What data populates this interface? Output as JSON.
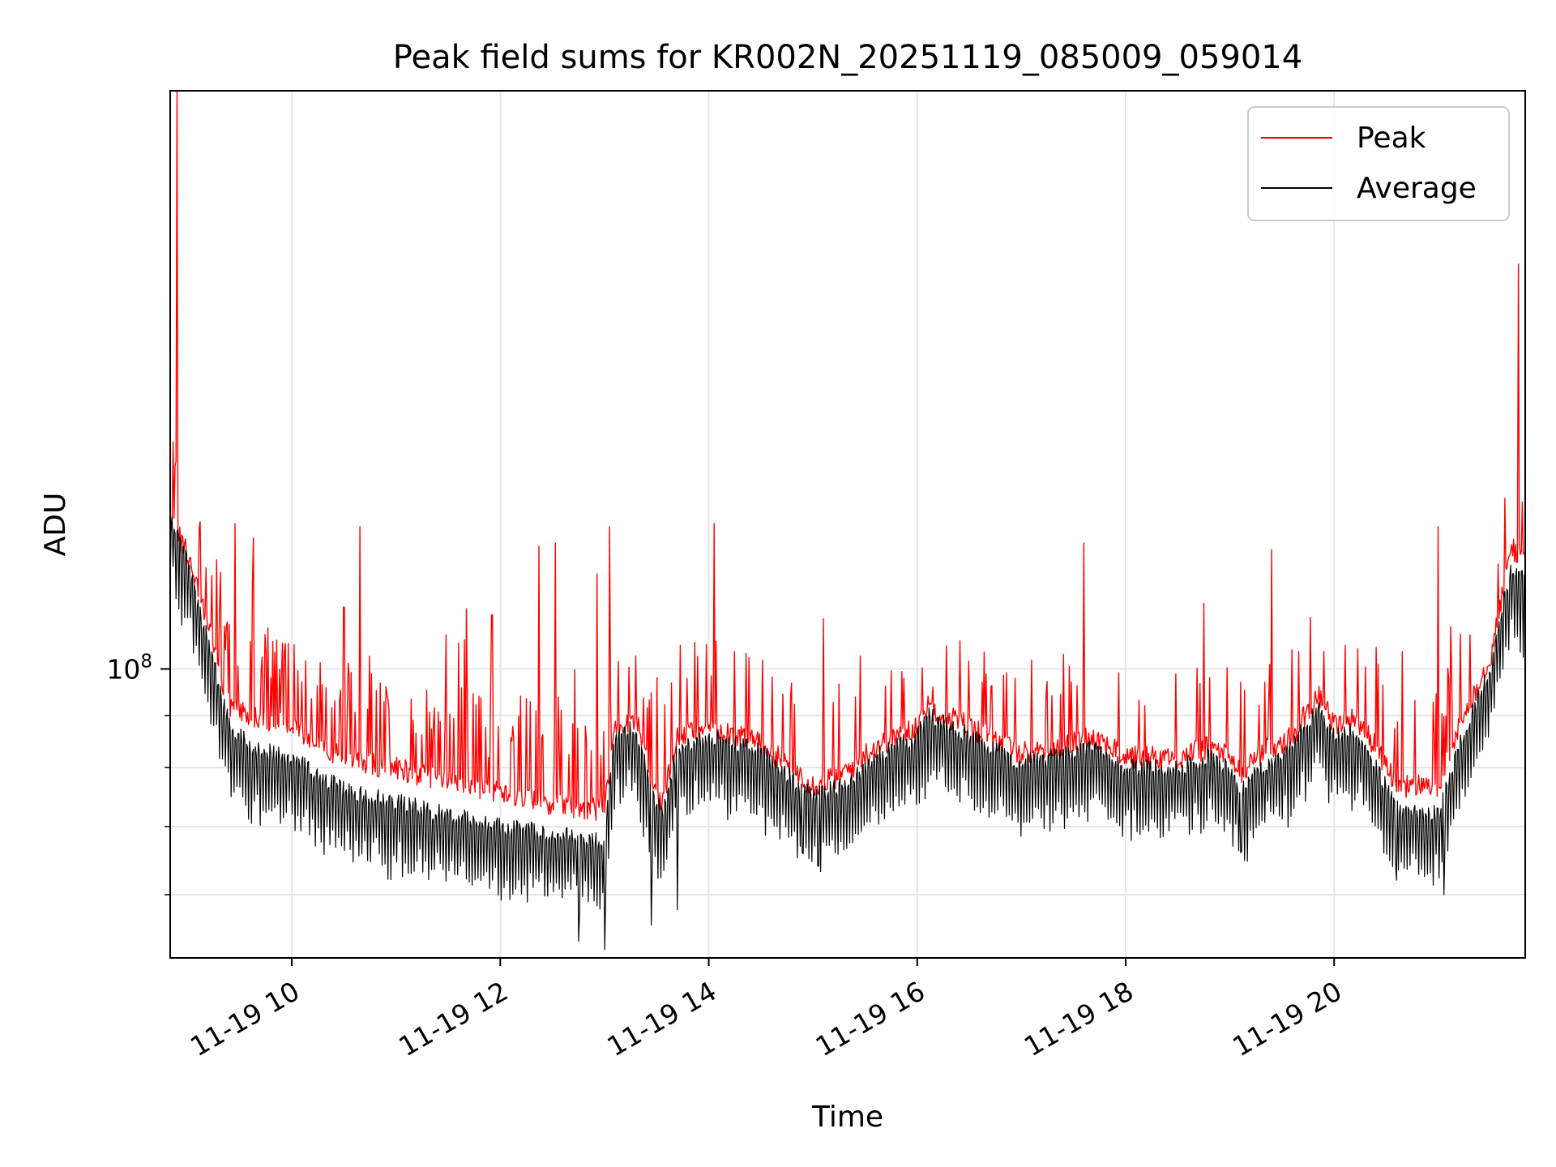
{
  "chart_data": {
    "type": "line",
    "title": "Peak field sums for KR002N_20251119_085009_059014",
    "xlabel": "Time",
    "ylabel": "ADU",
    "yscale": "log",
    "xlim_hours": [
      8.833,
      21.833
    ],
    "ylim": [
      52000000,
      370000000
    ],
    "x_ticks": [
      {
        "value": 10,
        "label": "11-19 10"
      },
      {
        "value": 12,
        "label": "11-19 12"
      },
      {
        "value": 14,
        "label": "11-19 14"
      },
      {
        "value": 16,
        "label": "11-19 16"
      },
      {
        "value": 18,
        "label": "11-19 18"
      },
      {
        "value": 20,
        "label": "11-19 20"
      }
    ],
    "y_major_tick": {
      "value": 100000000,
      "label_base": "10",
      "label_exp": "8"
    },
    "y_minor_ticks": [
      60000000,
      70000000,
      80000000,
      90000000
    ],
    "grid": true,
    "legend_position": "top-right",
    "colors": {
      "peak": "#ff0000",
      "average": "#000000",
      "grid": "#e6e6e6"
    },
    "series": [
      {
        "name": "Peak",
        "color": "#ff0000",
        "baseline": [
          [
            8.85,
            140000000
          ],
          [
            9.0,
            130000000
          ],
          [
            9.2,
            110000000
          ],
          [
            9.4,
            92000000
          ],
          [
            9.6,
            90000000
          ],
          [
            10.0,
            88000000
          ],
          [
            10.5,
            82000000
          ],
          [
            11.0,
            80000000
          ],
          [
            11.5,
            78000000
          ],
          [
            12.0,
            76000000
          ],
          [
            12.5,
            74000000
          ],
          [
            13.0,
            73000000
          ],
          [
            13.1,
            88000000
          ],
          [
            13.3,
            90000000
          ],
          [
            13.45,
            78000000
          ],
          [
            13.55,
            74000000
          ],
          [
            13.7,
            86000000
          ],
          [
            14.0,
            88000000
          ],
          [
            14.5,
            85000000
          ],
          [
            14.8,
            80000000
          ],
          [
            15.0,
            77000000
          ],
          [
            15.3,
            79000000
          ],
          [
            15.6,
            84000000
          ],
          [
            16.0,
            88000000
          ],
          [
            16.1,
            92000000
          ],
          [
            16.5,
            88000000
          ],
          [
            17.0,
            83000000
          ],
          [
            17.3,
            84000000
          ],
          [
            17.5,
            85000000
          ],
          [
            17.7,
            86000000
          ],
          [
            18.0,
            82000000
          ],
          [
            18.5,
            82000000
          ],
          [
            18.8,
            84000000
          ],
          [
            19.0,
            82000000
          ],
          [
            19.1,
            79000000
          ],
          [
            19.3,
            83000000
          ],
          [
            19.6,
            86000000
          ],
          [
            19.85,
            95000000
          ],
          [
            20.0,
            88000000
          ],
          [
            20.2,
            90000000
          ],
          [
            20.4,
            84000000
          ],
          [
            20.6,
            77000000
          ],
          [
            21.0,
            77000000
          ],
          [
            21.2,
            88000000
          ],
          [
            21.5,
            103000000
          ],
          [
            21.7,
            132000000
          ],
          [
            21.833,
            128000000
          ]
        ],
        "spikes": [
          [
            8.9,
            370000000
          ],
          [
            9.28,
            128000000
          ],
          [
            9.62,
            122000000
          ],
          [
            10.65,
            138000000
          ],
          [
            10.5,
            115000000
          ],
          [
            11.48,
            108000000
          ],
          [
            11.6,
            106000000
          ],
          [
            11.92,
            113000000
          ],
          [
            12.37,
            132000000
          ],
          [
            12.53,
            133000000
          ],
          [
            12.93,
            124000000
          ],
          [
            13.05,
            138000000
          ],
          [
            13.3,
            103000000
          ],
          [
            13.5,
            98000000
          ],
          [
            14.05,
            139000000
          ],
          [
            14.25,
            104000000
          ],
          [
            15.1,
            112000000
          ],
          [
            15.45,
            103000000
          ],
          [
            16.15,
            96000000
          ],
          [
            17.6,
            133000000
          ],
          [
            18.75,
            116000000
          ],
          [
            19.1,
            97000000
          ],
          [
            19.4,
            131000000
          ],
          [
            19.9,
            104000000
          ],
          [
            20.4,
            105000000
          ],
          [
            20.65,
            104000000
          ],
          [
            21.0,
            138000000
          ],
          [
            21.12,
            110000000
          ],
          [
            21.3,
            108000000
          ],
          [
            21.77,
            250000000
          ]
        ]
      },
      {
        "name": "Average",
        "color": "#000000",
        "baseline": [
          [
            8.85,
            140000000
          ],
          [
            9.0,
            128000000
          ],
          [
            9.2,
            106000000
          ],
          [
            9.4,
            88000000
          ],
          [
            9.6,
            84000000
          ],
          [
            10.0,
            82000000
          ],
          [
            10.5,
            76000000
          ],
          [
            11.0,
            74000000
          ],
          [
            11.5,
            72000000
          ],
          [
            12.0,
            70000000
          ],
          [
            12.5,
            69000000
          ],
          [
            13.0,
            68000000
          ],
          [
            13.1,
            86000000
          ],
          [
            13.3,
            88000000
          ],
          [
            13.45,
            76000000
          ],
          [
            13.55,
            72000000
          ],
          [
            13.7,
            84000000
          ],
          [
            14.0,
            86000000
          ],
          [
            14.5,
            83000000
          ],
          [
            14.8,
            78000000
          ],
          [
            15.0,
            75000000
          ],
          [
            15.3,
            77000000
          ],
          [
            15.6,
            82000000
          ],
          [
            16.0,
            86000000
          ],
          [
            16.1,
            90000000
          ],
          [
            16.5,
            86000000
          ],
          [
            17.0,
            81000000
          ],
          [
            17.3,
            82000000
          ],
          [
            17.5,
            83000000
          ],
          [
            17.7,
            84000000
          ],
          [
            18.0,
            80000000
          ],
          [
            18.5,
            80000000
          ],
          [
            18.8,
            82000000
          ],
          [
            19.0,
            80000000
          ],
          [
            19.1,
            76000000
          ],
          [
            19.3,
            80000000
          ],
          [
            19.6,
            84000000
          ],
          [
            19.85,
            92000000
          ],
          [
            20.0,
            86000000
          ],
          [
            20.2,
            87000000
          ],
          [
            20.4,
            80000000
          ],
          [
            20.6,
            73000000
          ],
          [
            21.0,
            72000000
          ],
          [
            21.2,
            84000000
          ],
          [
            21.5,
            100000000
          ],
          [
            21.7,
            126000000
          ],
          [
            21.833,
            122000000
          ]
        ],
        "dips": [
          [
            12.75,
            54000000
          ],
          [
            13.0,
            53000000
          ],
          [
            13.45,
            56000000
          ],
          [
            13.7,
            58000000
          ],
          [
            14.9,
            66000000
          ],
          [
            15.05,
            64000000
          ],
          [
            19.1,
            66000000
          ],
          [
            20.6,
            62000000
          ],
          [
            21.05,
            60000000
          ]
        ]
      }
    ],
    "legend": [
      {
        "label": "Peak",
        "color": "#ff0000"
      },
      {
        "label": "Average",
        "color": "#000000"
      }
    ]
  }
}
